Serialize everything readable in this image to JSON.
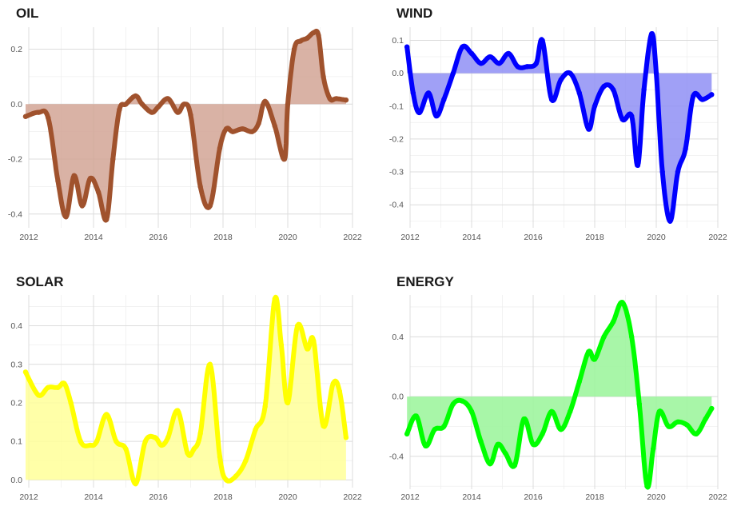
{
  "chart_data": [
    {
      "type": "area",
      "title": "OIL",
      "color": "#a0522d",
      "fill": "#d2a595",
      "xlim": [
        2012,
        2022
      ],
      "ylim": [
        -0.45,
        0.28
      ],
      "xticks": [
        2012,
        2014,
        2016,
        2018,
        2020,
        2022
      ],
      "xtick_labels": [
        "2012",
        "2014",
        "2016",
        "2018",
        "2020",
        "2022"
      ],
      "yticks": [
        -0.4,
        -0.2,
        0.0,
        0.2
      ],
      "ytick_labels": [
        "-0.4",
        "-0.2",
        "0.0",
        "0.2"
      ],
      "series": [
        {
          "x": [
            2011.9,
            2012.3,
            2012.6,
            2012.9,
            2013.15,
            2013.4,
            2013.65,
            2013.9,
            2014.15,
            2014.4,
            2014.6,
            2014.8,
            2015.0,
            2015.3,
            2015.5,
            2015.8,
            2016.0,
            2016.3,
            2016.6,
            2016.8,
            2017.0,
            2017.3,
            2017.6,
            2017.9,
            2018.1,
            2018.3,
            2018.6,
            2018.9,
            2019.1,
            2019.3,
            2019.6,
            2019.9,
            2020.0,
            2020.2,
            2020.4,
            2020.6,
            2020.8,
            2020.95,
            2021.1,
            2021.3,
            2021.5,
            2021.8
          ],
          "y": [
            -0.045,
            -0.03,
            -0.05,
            -0.28,
            -0.41,
            -0.26,
            -0.37,
            -0.27,
            -0.32,
            -0.42,
            -0.2,
            -0.02,
            0.0,
            0.03,
            0.0,
            -0.03,
            -0.01,
            0.02,
            -0.03,
            0.0,
            -0.04,
            -0.3,
            -0.37,
            -0.16,
            -0.09,
            -0.1,
            -0.09,
            -0.1,
            -0.07,
            0.01,
            -0.08,
            -0.2,
            0.0,
            0.2,
            0.23,
            0.24,
            0.26,
            0.25,
            0.1,
            0.02,
            0.02,
            0.015
          ]
        }
      ]
    },
    {
      "type": "area",
      "title": "WIND",
      "color": "#0000ff",
      "fill": "#8f8ff5",
      "xlim": [
        2012,
        2022
      ],
      "ylim": [
        -0.47,
        0.14
      ],
      "xticks": [
        2012,
        2014,
        2016,
        2018,
        2020,
        2022
      ],
      "xtick_labels": [
        "2012",
        "2014",
        "2016",
        "2018",
        "2020",
        "2022"
      ],
      "yticks": [
        -0.4,
        -0.3,
        -0.2,
        -0.1,
        0.0,
        0.1
      ],
      "ytick_labels": [
        "-0.4",
        "-0.3",
        "-0.2",
        "-0.1",
        "0.0",
        "0.1"
      ],
      "series": [
        {
          "x": [
            2011.9,
            2012.1,
            2012.3,
            2012.6,
            2012.85,
            2013.1,
            2013.4,
            2013.7,
            2014.0,
            2014.3,
            2014.6,
            2014.9,
            2015.2,
            2015.5,
            2015.8,
            2016.1,
            2016.3,
            2016.6,
            2016.9,
            2017.2,
            2017.5,
            2017.8,
            2018.0,
            2018.3,
            2018.6,
            2018.9,
            2019.2,
            2019.4,
            2019.6,
            2019.85,
            2020.0,
            2020.2,
            2020.45,
            2020.7,
            2020.95,
            2021.2,
            2021.5,
            2021.8
          ],
          "y": [
            0.08,
            -0.06,
            -0.12,
            -0.06,
            -0.13,
            -0.08,
            0.0,
            0.08,
            0.06,
            0.03,
            0.05,
            0.03,
            0.06,
            0.02,
            0.02,
            0.03,
            0.1,
            -0.08,
            -0.02,
            0.0,
            -0.06,
            -0.17,
            -0.1,
            -0.04,
            -0.05,
            -0.14,
            -0.13,
            -0.28,
            -0.05,
            0.12,
            0.0,
            -0.3,
            -0.45,
            -0.3,
            -0.23,
            -0.07,
            -0.08,
            -0.065
          ]
        }
      ]
    },
    {
      "type": "area",
      "title": "SOLAR",
      "color": "#ffff00",
      "fill": "#ffff99",
      "xlim": [
        2012,
        2022
      ],
      "ylim": [
        -0.02,
        0.48
      ],
      "xticks": [
        2012,
        2014,
        2016,
        2018,
        2020,
        2022
      ],
      "xtick_labels": [
        "2012",
        "2014",
        "2016",
        "2018",
        "2020",
        "2022"
      ],
      "yticks": [
        0.0,
        0.1,
        0.2,
        0.3,
        0.4
      ],
      "ytick_labels": [
        "0.0",
        "0.1",
        "0.2",
        "0.3",
        "0.4"
      ],
      "series": [
        {
          "x": [
            2011.9,
            2012.3,
            2012.6,
            2012.9,
            2013.1,
            2013.3,
            2013.6,
            2013.9,
            2014.1,
            2014.4,
            2014.7,
            2015.0,
            2015.3,
            2015.6,
            2015.9,
            2016.1,
            2016.3,
            2016.6,
            2016.9,
            2017.1,
            2017.3,
            2017.6,
            2017.9,
            2018.1,
            2018.4,
            2018.7,
            2019.0,
            2019.3,
            2019.6,
            2019.8,
            2020.0,
            2020.3,
            2020.6,
            2020.8,
            2021.1,
            2021.4,
            2021.6,
            2021.8
          ],
          "y": [
            0.28,
            0.22,
            0.24,
            0.24,
            0.25,
            0.2,
            0.1,
            0.09,
            0.1,
            0.17,
            0.1,
            0.08,
            -0.01,
            0.1,
            0.11,
            0.09,
            0.11,
            0.18,
            0.07,
            0.08,
            0.12,
            0.3,
            0.06,
            0.0,
            0.01,
            0.05,
            0.13,
            0.19,
            0.47,
            0.35,
            0.2,
            0.4,
            0.34,
            0.36,
            0.14,
            0.25,
            0.23,
            0.11
          ]
        }
      ]
    },
    {
      "type": "area",
      "title": "ENERGY",
      "color": "#00ff00",
      "fill": "#99f599",
      "xlim": [
        2012,
        2022
      ],
      "ylim": [
        -0.62,
        0.68
      ],
      "xticks": [
        2012,
        2014,
        2016,
        2018,
        2020,
        2022
      ],
      "xtick_labels": [
        "2012",
        "2014",
        "2016",
        "2018",
        "2020",
        "2022"
      ],
      "yticks": [
        -0.4,
        0.0,
        0.4
      ],
      "ytick_labels": [
        "-0.4",
        "0.0",
        "0.4"
      ],
      "series": [
        {
          "x": [
            2011.9,
            2012.2,
            2012.5,
            2012.8,
            2013.1,
            2013.4,
            2013.7,
            2014.0,
            2014.3,
            2014.6,
            2014.85,
            2015.1,
            2015.4,
            2015.7,
            2016.0,
            2016.3,
            2016.6,
            2016.9,
            2017.2,
            2017.5,
            2017.8,
            2018.0,
            2018.3,
            2018.6,
            2018.9,
            2019.2,
            2019.45,
            2019.7,
            2019.9,
            2020.1,
            2020.4,
            2020.7,
            2021.0,
            2021.3,
            2021.6,
            2021.8
          ],
          "y": [
            -0.25,
            -0.13,
            -0.33,
            -0.22,
            -0.2,
            -0.05,
            -0.03,
            -0.1,
            -0.3,
            -0.45,
            -0.32,
            -0.38,
            -0.46,
            -0.15,
            -0.32,
            -0.25,
            -0.1,
            -0.22,
            -0.1,
            0.1,
            0.3,
            0.25,
            0.4,
            0.5,
            0.63,
            0.4,
            -0.05,
            -0.6,
            -0.35,
            -0.1,
            -0.2,
            -0.17,
            -0.19,
            -0.25,
            -0.15,
            -0.08
          ]
        }
      ]
    }
  ]
}
